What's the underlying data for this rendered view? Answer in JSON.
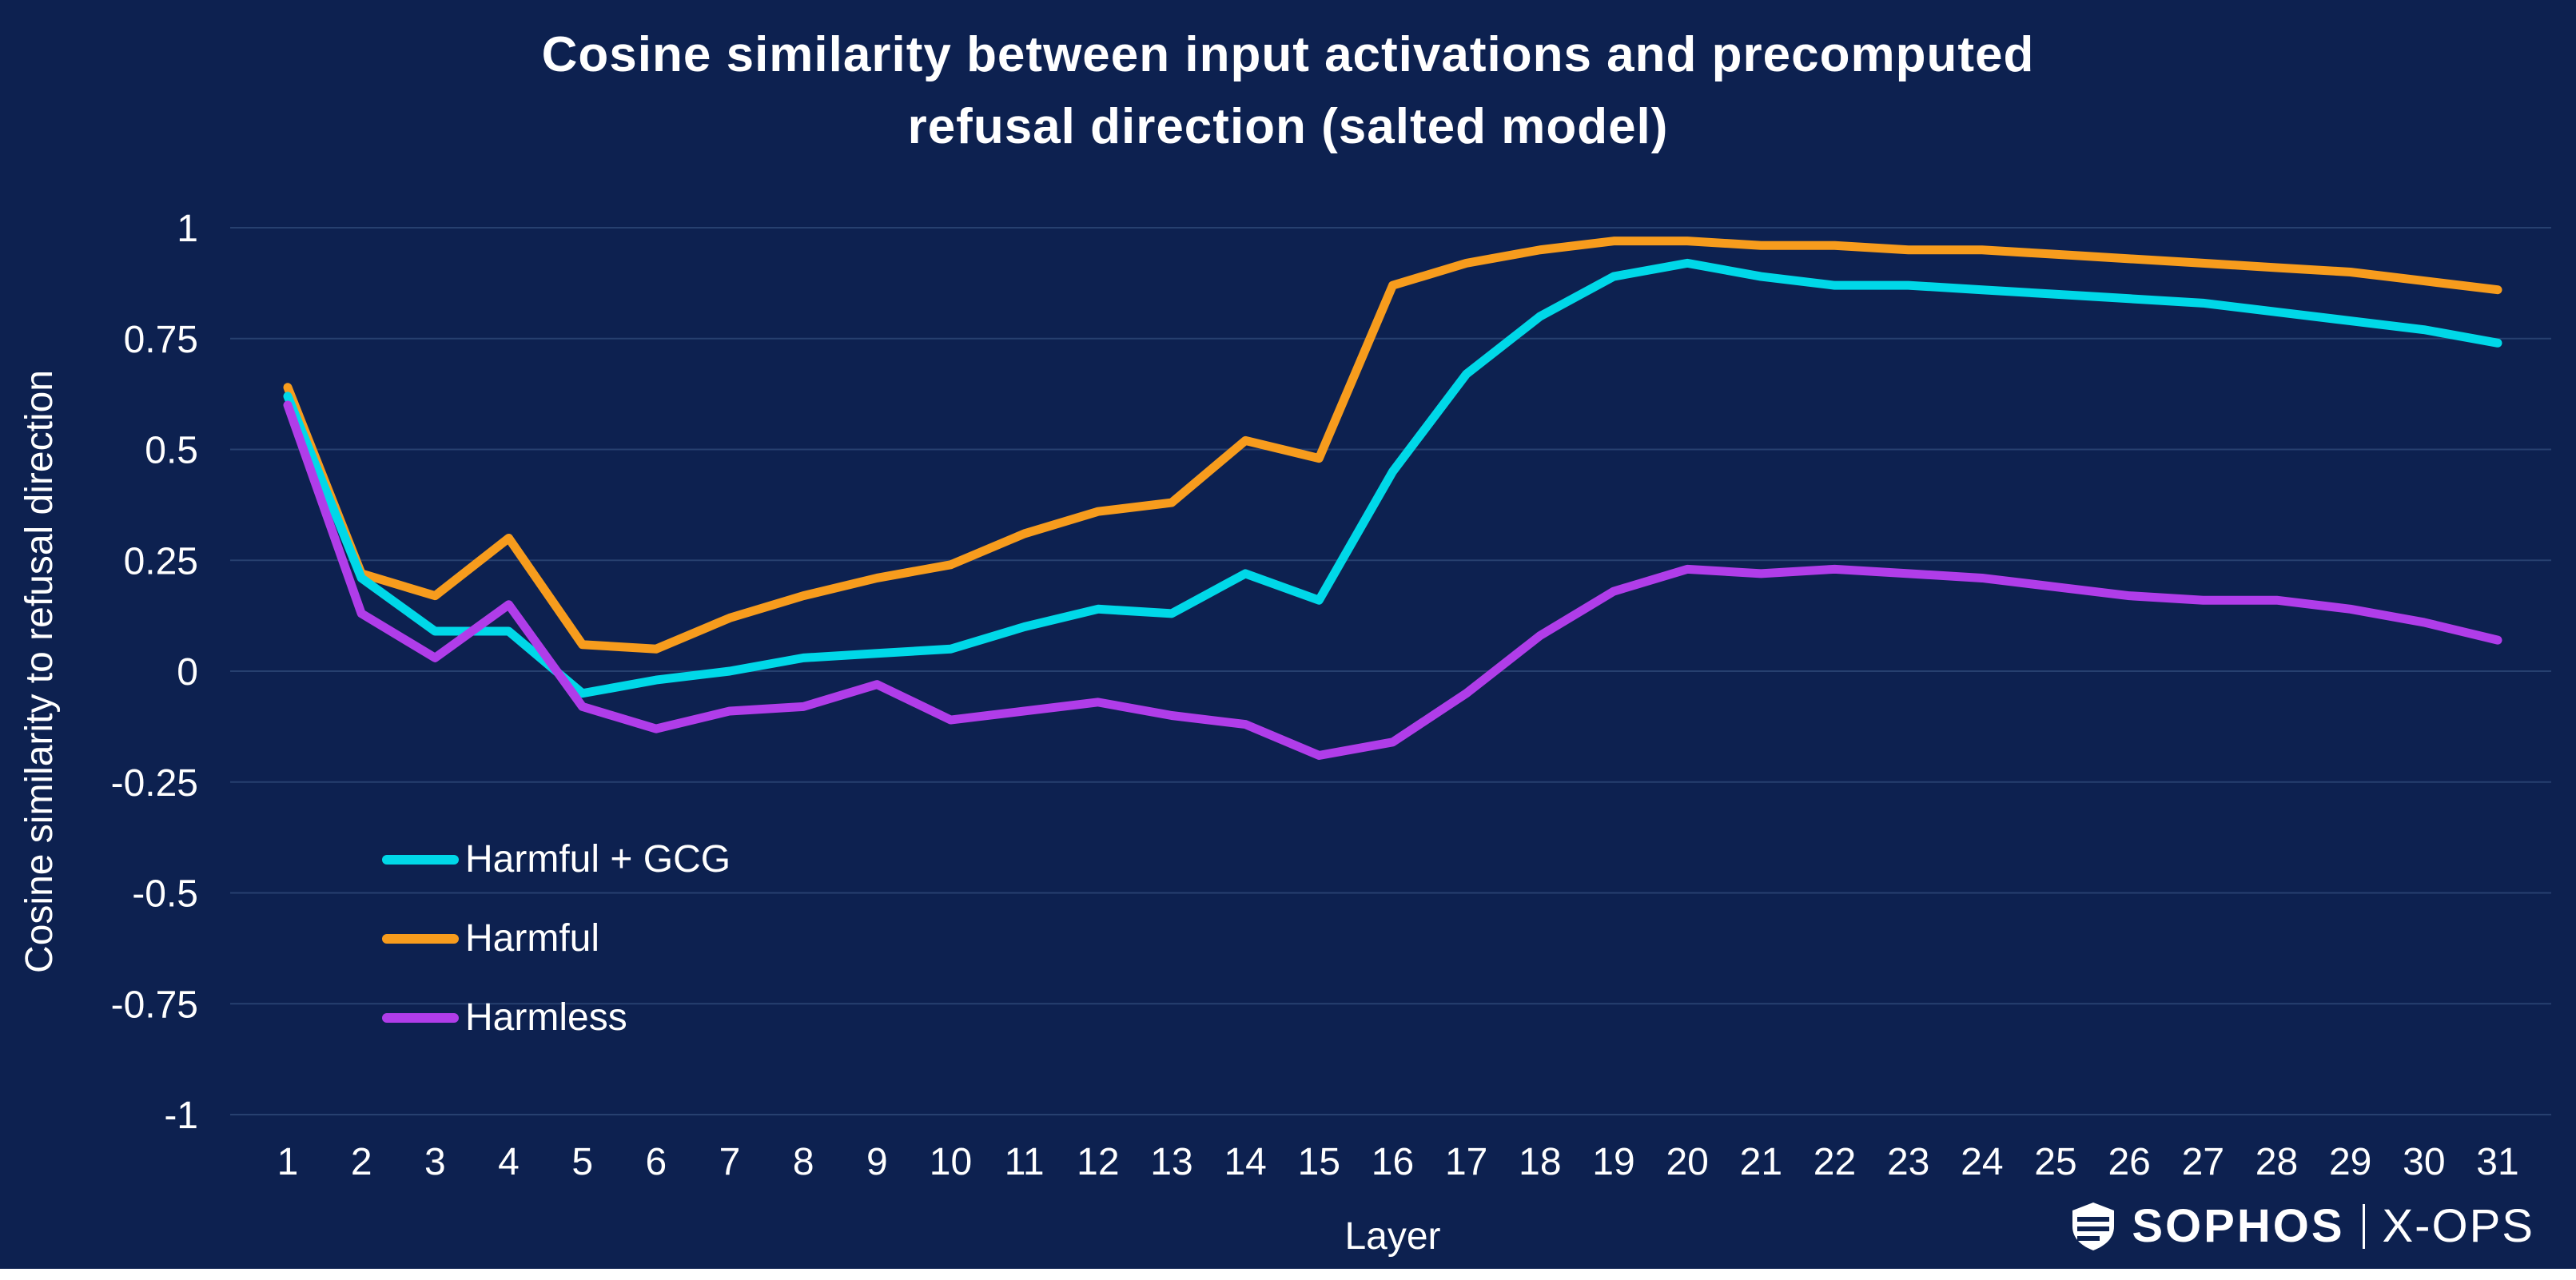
{
  "title": {
    "line1": "Cosine similarity between input activations and precomputed",
    "line2": "refusal direction (salted model)"
  },
  "colors": {
    "background": "#0d2150",
    "grid": "#27406f",
    "text": "#ffffff",
    "harmful_gcg": "#00d8e8",
    "harmful": "#f79c1d",
    "harmless": "#b03de9"
  },
  "chart_data": {
    "type": "line",
    "x": [
      1,
      2,
      3,
      4,
      5,
      6,
      7,
      8,
      9,
      10,
      11,
      12,
      13,
      14,
      15,
      16,
      17,
      18,
      19,
      20,
      21,
      22,
      23,
      24,
      25,
      26,
      27,
      28,
      29,
      30,
      31
    ],
    "xlabel": "Layer",
    "ylabel": "Cosine similarity to refusal direction",
    "ylim": [
      -1,
      1
    ],
    "yticks": [
      1,
      0.75,
      0.5,
      0.25,
      0,
      -0.25,
      -0.5,
      -0.75,
      -1
    ],
    "grid": true,
    "legend_position": "inside-left",
    "series": [
      {
        "name": "Harmful + GCG",
        "color_key": "harmful_gcg",
        "values": [
          0.62,
          0.21,
          0.09,
          0.09,
          -0.05,
          -0.02,
          0.0,
          0.03,
          0.04,
          0.05,
          0.1,
          0.14,
          0.13,
          0.22,
          0.16,
          0.45,
          0.67,
          0.8,
          0.89,
          0.92,
          0.89,
          0.87,
          0.87,
          0.86,
          0.85,
          0.84,
          0.83,
          0.81,
          0.79,
          0.77,
          0.74
        ]
      },
      {
        "name": "Harmful",
        "color_key": "harmful",
        "values": [
          0.64,
          0.22,
          0.17,
          0.3,
          0.06,
          0.05,
          0.12,
          0.17,
          0.21,
          0.24,
          0.31,
          0.36,
          0.38,
          0.52,
          0.48,
          0.87,
          0.92,
          0.95,
          0.97,
          0.97,
          0.96,
          0.96,
          0.95,
          0.95,
          0.94,
          0.93,
          0.92,
          0.91,
          0.9,
          0.88,
          0.86
        ]
      },
      {
        "name": "Harmless",
        "color_key": "harmless",
        "values": [
          0.6,
          0.13,
          0.03,
          0.15,
          -0.08,
          -0.13,
          -0.09,
          -0.08,
          -0.03,
          -0.11,
          -0.09,
          -0.07,
          -0.1,
          -0.12,
          -0.19,
          -0.16,
          -0.05,
          0.08,
          0.18,
          0.23,
          0.22,
          0.23,
          0.22,
          0.21,
          0.19,
          0.17,
          0.16,
          0.16,
          0.14,
          0.11,
          0.07
        ]
      }
    ]
  },
  "branding": {
    "sophos": "SOPHOS",
    "divider": "|",
    "xops": "X-OPS"
  }
}
